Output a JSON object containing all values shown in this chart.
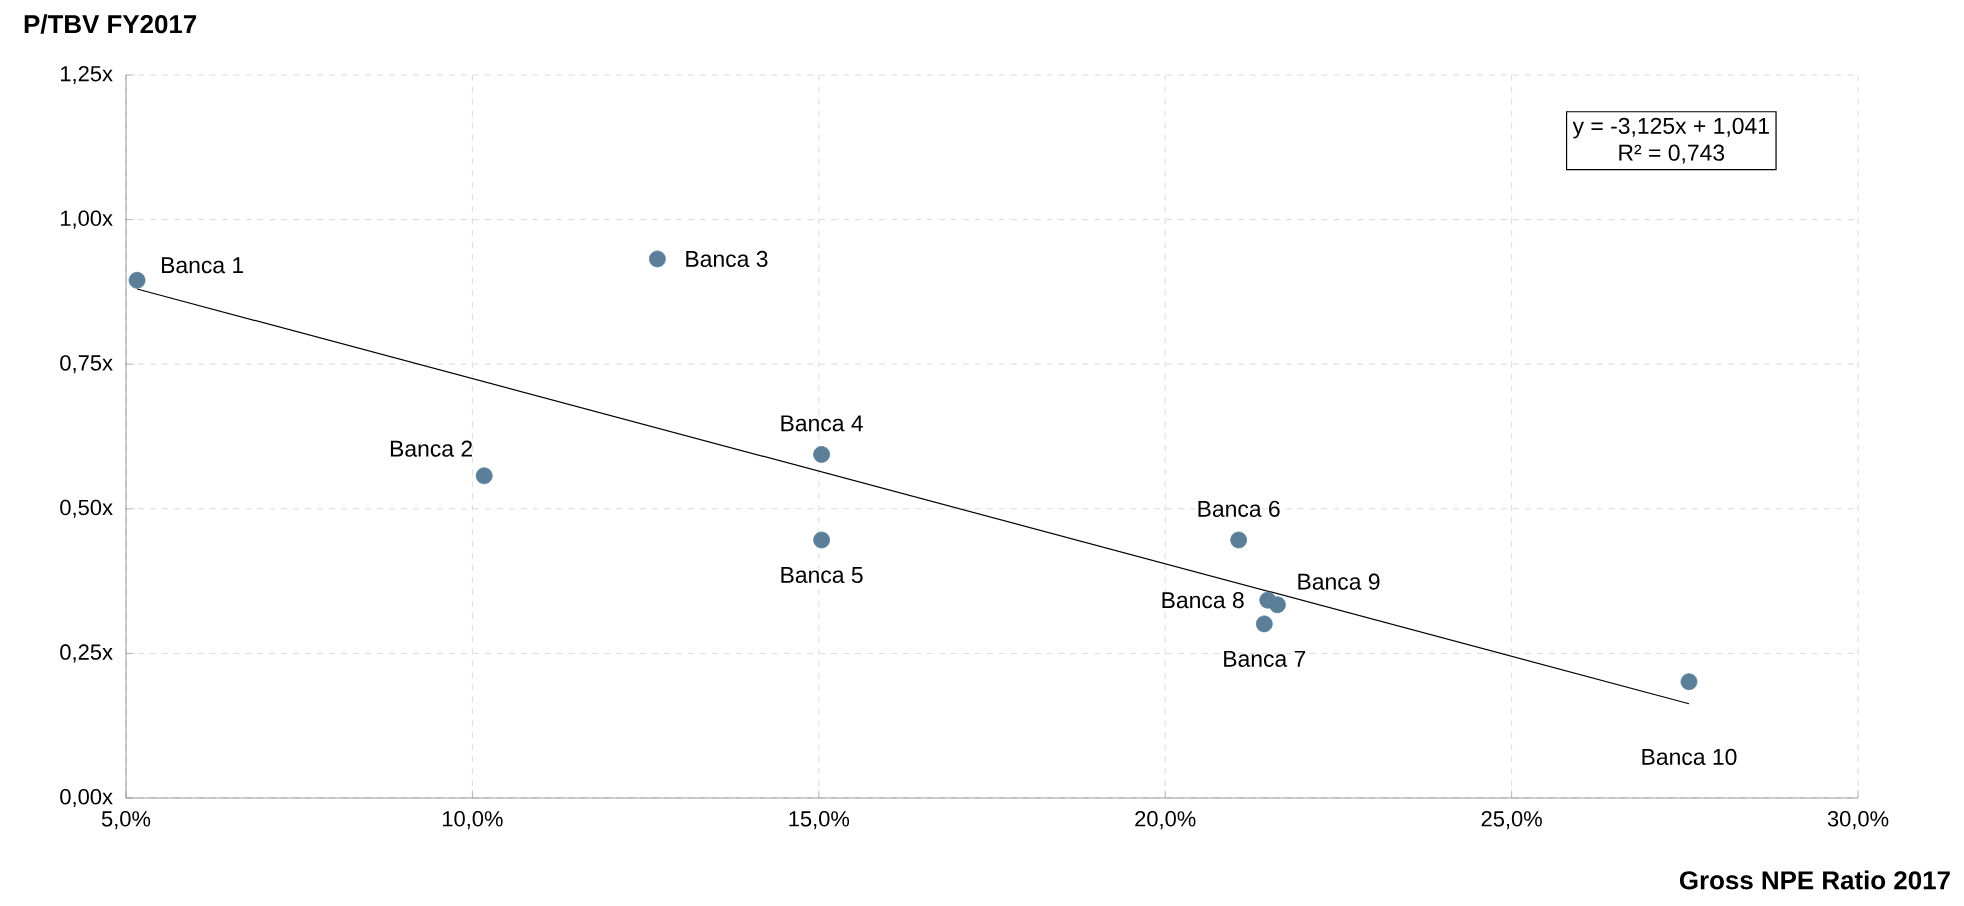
{
  "chart_data": {
    "type": "scatter",
    "xlabel": "Gross NPE Ratio 2017",
    "ylabel": "P/TBV FY2017",
    "annotations": [
      "y = -3,125x + 1,041",
      "R² = 0,743"
    ],
    "xlim": [
      5,
      30
    ],
    "ylim": [
      0,
      1.25
    ],
    "xticks": [
      {
        "value": 5,
        "label": "5,0%"
      },
      {
        "value": 10,
        "label": "10,0%"
      },
      {
        "value": 15,
        "label": "15,0%"
      },
      {
        "value": 20,
        "label": "20,0%"
      },
      {
        "value": 25,
        "label": "25,0%"
      },
      {
        "value": 30,
        "label": "30,0%"
      }
    ],
    "yticks": [
      {
        "value": 0,
        "label": "0,00x"
      },
      {
        "value": 0.25,
        "label": "0,25x"
      },
      {
        "value": 0.5,
        "label": "0,50x"
      },
      {
        "value": 0.75,
        "label": "0,75x"
      },
      {
        "value": 1.0,
        "label": "1,00x"
      },
      {
        "value": 1.25,
        "label": "1,25x"
      }
    ],
    "grid": true,
    "marker": "circle",
    "series": [
      {
        "name": "Banca 1",
        "color": "#5b7f99",
        "x": [
          5.16
        ],
        "values": [
          0.895
        ]
      },
      {
        "name": "Banca 2",
        "color": "#5b7f99",
        "x": [
          10.17
        ],
        "values": [
          0.557
        ]
      },
      {
        "name": "Banca 3",
        "color": "#5b7f99",
        "x": [
          12.67
        ],
        "values": [
          0.932
        ]
      },
      {
        "name": "Banca 4",
        "color": "#5b7f99",
        "x": [
          15.04
        ],
        "values": [
          0.594
        ]
      },
      {
        "name": "Banca 5",
        "color": "#5b7f99",
        "x": [
          15.04
        ],
        "values": [
          0.446
        ]
      },
      {
        "name": "Banca 6",
        "color": "#5b7f99",
        "x": [
          21.06
        ],
        "values": [
          0.446
        ]
      },
      {
        "name": "Banca 7",
        "color": "#5b7f99",
        "x": [
          21.43
        ],
        "values": [
          0.301
        ]
      },
      {
        "name": "Banca 8",
        "color": "#5b7f99",
        "x": [
          21.48
        ],
        "values": [
          0.342
        ]
      },
      {
        "name": "Banca 9",
        "color": "#5b7f99",
        "x": [
          21.62
        ],
        "values": [
          0.334
        ]
      },
      {
        "name": "Banca 10",
        "color": "#5b7f99",
        "x": [
          27.56
        ],
        "values": [
          0.201
        ]
      },
      {
        "type": "line",
        "marker": "none",
        "color": "#000000",
        "x": [
          5.16,
          27.56
        ],
        "values": [
          0.88,
          0.163
        ]
      }
    ]
  }
}
